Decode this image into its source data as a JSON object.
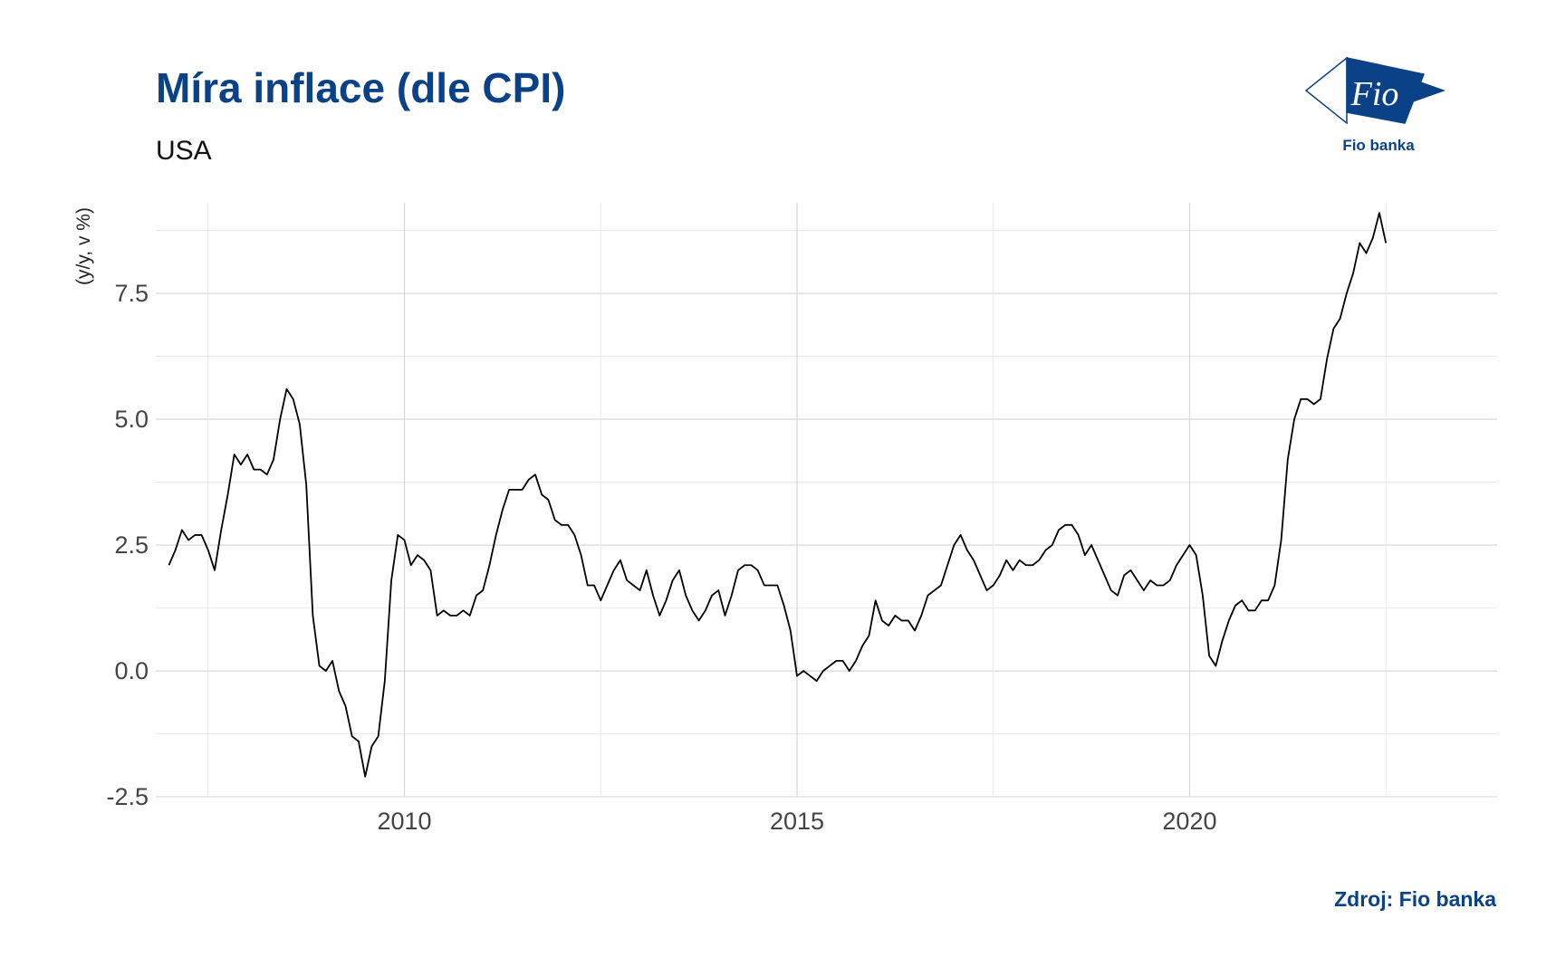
{
  "header": {
    "title": "Míra inflace (dle CPI)",
    "subtitle": "USA"
  },
  "logo": {
    "mark_text": "Fio",
    "caption": "Fio banka",
    "color": "#0b4287"
  },
  "footer": {
    "source": "Zdroj: Fio banka"
  },
  "chart_data": {
    "type": "line",
    "title": "Míra inflace (dle CPI)",
    "subtitle": "USA",
    "xlabel": "",
    "ylabel": "(y/y, v %)",
    "x_ticks": [
      "2010",
      "2015",
      "2020"
    ],
    "y_ticks": [
      "-2.5",
      "0.0",
      "2.5",
      "5.0",
      "7.5"
    ],
    "xlim": [
      "2006-11",
      "2023-12"
    ],
    "ylim": [
      -2.5,
      9.3
    ],
    "grid": true,
    "legend": "none",
    "line_color": "#000000",
    "series": [
      {
        "x_start": "2007-01",
        "frequency": "monthly",
        "values": [
          2.1,
          2.4,
          2.8,
          2.6,
          2.7,
          2.7,
          2.4,
          2.0,
          2.8,
          3.5,
          4.3,
          4.1,
          4.3,
          4.0,
          4.0,
          3.9,
          4.2,
          5.0,
          5.6,
          5.4,
          4.9,
          3.7,
          1.1,
          0.1,
          0.0,
          0.2,
          -0.4,
          -0.7,
          -1.3,
          -1.4,
          -2.1,
          -1.5,
          -1.3,
          -0.2,
          1.8,
          2.7,
          2.6,
          2.1,
          2.3,
          2.2,
          2.0,
          1.1,
          1.2,
          1.1,
          1.1,
          1.2,
          1.1,
          1.5,
          1.6,
          2.1,
          2.7,
          3.2,
          3.6,
          3.6,
          3.6,
          3.8,
          3.9,
          3.5,
          3.4,
          3.0,
          2.9,
          2.9,
          2.7,
          2.3,
          1.7,
          1.7,
          1.4,
          1.7,
          2.0,
          2.2,
          1.8,
          1.7,
          1.6,
          2.0,
          1.5,
          1.1,
          1.4,
          1.8,
          2.0,
          1.5,
          1.2,
          1.0,
          1.2,
          1.5,
          1.6,
          1.1,
          1.5,
          2.0,
          2.1,
          2.1,
          2.0,
          1.7,
          1.7,
          1.7,
          1.3,
          0.8,
          -0.1,
          0.0,
          -0.1,
          -0.2,
          0.0,
          0.1,
          0.2,
          0.2,
          0.0,
          0.2,
          0.5,
          0.7,
          1.4,
          1.0,
          0.9,
          1.1,
          1.0,
          1.0,
          0.8,
          1.1,
          1.5,
          1.6,
          1.7,
          2.1,
          2.5,
          2.7,
          2.4,
          2.2,
          1.9,
          1.6,
          1.7,
          1.9,
          2.2,
          2.0,
          2.2,
          2.1,
          2.1,
          2.2,
          2.4,
          2.5,
          2.8,
          2.9,
          2.9,
          2.7,
          2.3,
          2.5,
          2.2,
          1.9,
          1.6,
          1.5,
          1.9,
          2.0,
          1.8,
          1.6,
          1.8,
          1.7,
          1.7,
          1.8,
          2.1,
          2.3,
          2.5,
          2.3,
          1.5,
          0.3,
          0.1,
          0.6,
          1.0,
          1.3,
          1.4,
          1.2,
          1.2,
          1.4,
          1.4,
          1.7,
          2.6,
          4.2,
          5.0,
          5.4,
          5.4,
          5.3,
          5.4,
          6.2,
          6.8,
          7.0,
          7.5,
          7.9,
          8.5,
          8.3,
          8.6,
          9.1,
          8.5
        ]
      }
    ]
  }
}
